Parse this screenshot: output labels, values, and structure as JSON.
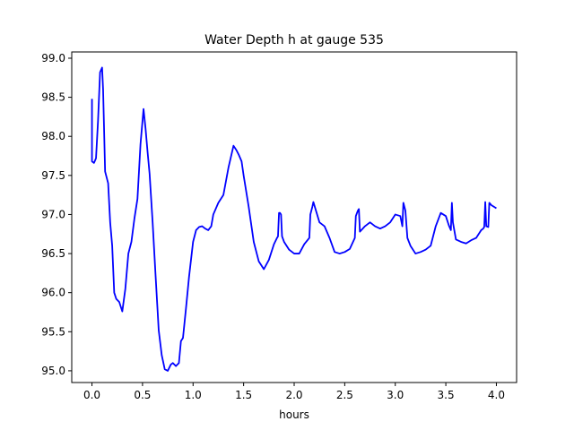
{
  "chart_data": {
    "type": "line",
    "title": "Water Depth h at gauge 535",
    "xlabel": "hours",
    "ylabel": "",
    "xlim": [
      -0.2,
      4.2
    ],
    "ylim": [
      94.85,
      99.08
    ],
    "grid": false,
    "x_ticks": [
      0.0,
      0.5,
      1.0,
      1.5,
      2.0,
      2.5,
      3.0,
      3.5,
      4.0
    ],
    "x_tick_labels": [
      "0.0",
      "0.5",
      "1.0",
      "1.5",
      "2.0",
      "2.5",
      "3.0",
      "3.5",
      "4.0"
    ],
    "y_ticks": [
      95.0,
      95.5,
      96.0,
      96.5,
      97.0,
      97.5,
      98.0,
      98.5,
      99.0
    ],
    "y_tick_labels": [
      "95.0",
      "95.5",
      "96.0",
      "96.5",
      "97.0",
      "97.5",
      "98.0",
      "98.5",
      "99.0"
    ],
    "line_color": "#0000ff",
    "series": [
      {
        "x": [
          0.0,
          0.0,
          0.02,
          0.04,
          0.06,
          0.08,
          0.1,
          0.11,
          0.13,
          0.15,
          0.16,
          0.18,
          0.2,
          0.22,
          0.24,
          0.27,
          0.3,
          0.33,
          0.36,
          0.39,
          0.42,
          0.45,
          0.48,
          0.51,
          0.53,
          0.55,
          0.57,
          0.6,
          0.63,
          0.66,
          0.69,
          0.72,
          0.75,
          0.78,
          0.8,
          0.83,
          0.86,
          0.88,
          0.9,
          0.93,
          0.96,
          1.0,
          1.03,
          1.06,
          1.09,
          1.12,
          1.15,
          1.18,
          1.2,
          1.25,
          1.3,
          1.35,
          1.4,
          1.43,
          1.45,
          1.48,
          1.5,
          1.55,
          1.6,
          1.65,
          1.7,
          1.75,
          1.8,
          1.83,
          1.84,
          1.85,
          1.86,
          1.87,
          1.88,
          1.9,
          1.95,
          2.0,
          2.05,
          2.1,
          2.15,
          2.16,
          2.18,
          2.19,
          2.25,
          2.3,
          2.35,
          2.4,
          2.45,
          2.5,
          2.55,
          2.6,
          2.61,
          2.63,
          2.64,
          2.65,
          2.7,
          2.75,
          2.8,
          2.85,
          2.9,
          2.95,
          3.0,
          3.05,
          3.07,
          3.08,
          3.1,
          3.12,
          3.15,
          3.2,
          3.25,
          3.3,
          3.35,
          3.4,
          3.45,
          3.5,
          3.53,
          3.55,
          3.56,
          3.57,
          3.6,
          3.65,
          3.7,
          3.75,
          3.8,
          3.85,
          3.87,
          3.88,
          3.89,
          3.9,
          3.92,
          3.93,
          3.95,
          4.0
        ],
        "y": [
          98.48,
          97.68,
          97.66,
          97.72,
          98.2,
          98.82,
          98.88,
          98.6,
          97.55,
          97.45,
          97.4,
          96.9,
          96.6,
          96.0,
          95.92,
          95.88,
          95.76,
          96.05,
          96.5,
          96.65,
          96.95,
          97.2,
          97.9,
          98.35,
          98.1,
          97.8,
          97.52,
          96.9,
          96.2,
          95.52,
          95.2,
          95.02,
          95.0,
          95.08,
          95.1,
          95.06,
          95.1,
          95.38,
          95.42,
          95.8,
          96.2,
          96.65,
          96.8,
          96.84,
          96.85,
          96.82,
          96.8,
          96.85,
          97.0,
          97.15,
          97.25,
          97.6,
          97.88,
          97.82,
          97.77,
          97.68,
          97.5,
          97.1,
          96.65,
          96.4,
          96.3,
          96.42,
          96.62,
          96.7,
          96.72,
          97.02,
          97.02,
          97.0,
          96.72,
          96.65,
          96.55,
          96.5,
          96.5,
          96.62,
          96.7,
          97.0,
          97.1,
          97.16,
          96.9,
          96.85,
          96.7,
          96.52,
          96.5,
          96.52,
          96.56,
          96.7,
          96.98,
          97.05,
          97.07,
          96.78,
          96.85,
          96.9,
          96.85,
          96.82,
          96.85,
          96.9,
          97.0,
          96.98,
          96.85,
          97.15,
          97.05,
          96.7,
          96.6,
          96.5,
          96.52,
          96.55,
          96.6,
          96.85,
          97.02,
          96.98,
          96.86,
          96.8,
          97.15,
          96.9,
          96.68,
          96.65,
          96.63,
          96.67,
          96.7,
          96.8,
          96.82,
          96.84,
          97.16,
          96.85,
          96.84,
          97.15,
          97.12,
          97.08
        ]
      }
    ]
  }
}
